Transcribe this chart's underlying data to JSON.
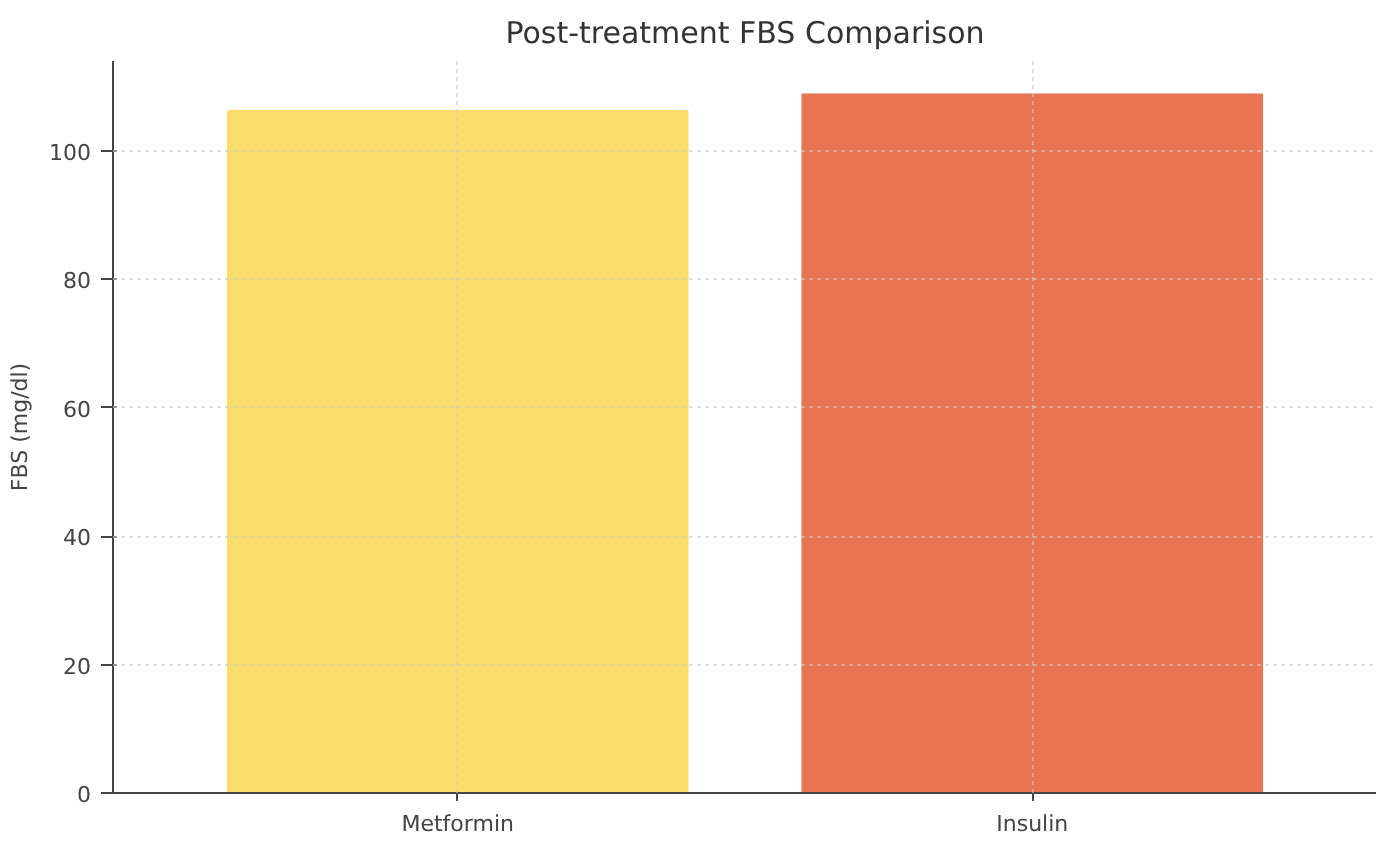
{
  "chart_data": {
    "type": "bar",
    "title": "Post-treatment FBS Comparison",
    "ylabel": "FBS (mg/dl)",
    "categories": [
      "Metformin",
      "Insulin"
    ],
    "values": [
      106.2,
      108.8
    ],
    "colors": [
      "#fcdc6a",
      "#e87452"
    ],
    "ylim": [
      0,
      114
    ],
    "yticks": [
      0,
      20,
      40,
      60,
      80,
      100
    ],
    "grid": true
  }
}
